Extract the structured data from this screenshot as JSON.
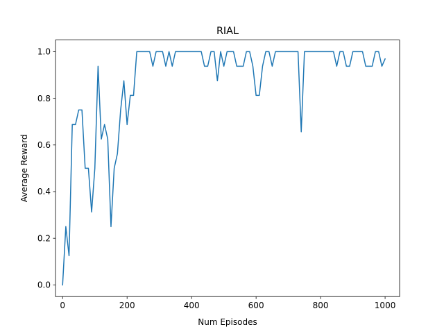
{
  "colors": {
    "line": "#1f77b4",
    "axes": "#000000",
    "background": "#ffffff"
  },
  "chart_data": {
    "type": "line",
    "title": "RIAL",
    "xlabel": "Num Episodes",
    "ylabel": "Average Reward",
    "xlim": [
      -22,
      1045
    ],
    "ylim": [
      -0.05,
      1.05
    ],
    "grid": false,
    "x_ticks": [
      0,
      200,
      400,
      600,
      800,
      1000
    ],
    "x_tick_labels": [
      "0",
      "200",
      "400",
      "600",
      "800",
      "1000"
    ],
    "y_ticks": [
      0.0,
      0.2,
      0.4,
      0.6,
      0.8,
      1.0
    ],
    "y_tick_labels": [
      "0.0",
      "0.2",
      "0.4",
      "0.6",
      "0.8",
      "1.0"
    ],
    "series": [
      {
        "color": "#1f77b4",
        "x": [
          0,
          10,
          20,
          30,
          40,
          50,
          60,
          70,
          80,
          90,
          100,
          110,
          120,
          130,
          140,
          150,
          160,
          170,
          180,
          190,
          200,
          210,
          220,
          230,
          240,
          250,
          260,
          270,
          280,
          290,
          300,
          310,
          320,
          330,
          340,
          350,
          360,
          370,
          380,
          390,
          400,
          410,
          420,
          430,
          440,
          450,
          460,
          470,
          480,
          490,
          500,
          510,
          520,
          530,
          540,
          550,
          560,
          570,
          580,
          590,
          600,
          610,
          620,
          630,
          640,
          650,
          660,
          670,
          680,
          690,
          700,
          710,
          720,
          730,
          740,
          750,
          760,
          770,
          780,
          790,
          800,
          810,
          820,
          830,
          840,
          850,
          860,
          870,
          880,
          890,
          900,
          910,
          920,
          930,
          940,
          950,
          960,
          970,
          980,
          990,
          1000
        ],
        "y": [
          0.0,
          0.25,
          0.125,
          0.6875,
          0.6875,
          0.75,
          0.75,
          0.5,
          0.5,
          0.3125,
          0.5,
          0.9375,
          0.625,
          0.6875,
          0.625,
          0.25,
          0.5,
          0.5625,
          0.75,
          0.875,
          0.6875,
          0.8125,
          0.8125,
          1.0,
          1.0,
          1.0,
          1.0,
          1.0,
          0.9375,
          1.0,
          1.0,
          1.0,
          0.9375,
          1.0,
          0.9375,
          1.0,
          1.0,
          1.0,
          1.0,
          1.0,
          1.0,
          1.0,
          1.0,
          1.0,
          0.9375,
          0.9375,
          1.0,
          1.0,
          0.875,
          1.0,
          0.9375,
          1.0,
          1.0,
          1.0,
          0.9375,
          0.9375,
          0.9375,
          1.0,
          1.0,
          0.9375,
          0.8125,
          0.8125,
          0.9375,
          1.0,
          1.0,
          0.9375,
          1.0,
          1.0,
          1.0,
          1.0,
          1.0,
          1.0,
          1.0,
          1.0,
          0.65625,
          1.0,
          1.0,
          1.0,
          1.0,
          1.0,
          1.0,
          1.0,
          1.0,
          1.0,
          1.0,
          0.9375,
          1.0,
          1.0,
          0.9375,
          0.9375,
          1.0,
          1.0,
          1.0,
          1.0,
          0.9375,
          0.9375,
          0.9375,
          1.0,
          1.0,
          0.9375,
          0.96875
        ]
      }
    ]
  }
}
